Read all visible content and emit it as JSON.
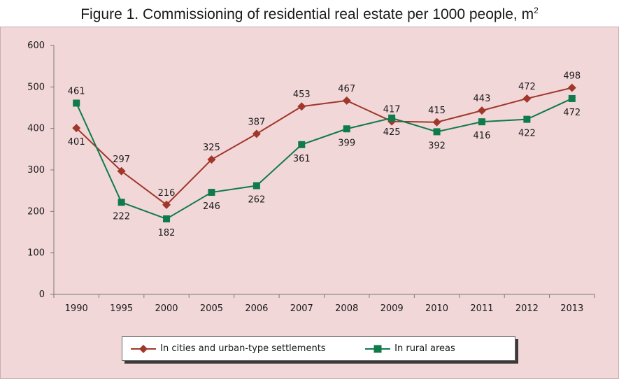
{
  "title": "Figure 1. Commissioning of residential real estate per 1000 people, m",
  "title_sup": "2",
  "chart_data": {
    "type": "line",
    "title": "Figure 1. Commissioning of residential real estate per 1000 people, m2",
    "categories": [
      "1990",
      "1995",
      "2000",
      "2005",
      "2006",
      "2007",
      "2008",
      "2009",
      "2010",
      "2011",
      "2012",
      "2013"
    ],
    "ylim": [
      0,
      600
    ],
    "yticks": [
      "0",
      "100",
      "200",
      "300",
      "400",
      "500",
      "600"
    ],
    "ytick_values": [
      0,
      100,
      200,
      300,
      400,
      500,
      600
    ],
    "series": [
      {
        "name": "In cities and urban-type settlements",
        "color": "#a0372a",
        "marker": "diamond",
        "values": [
          401,
          297,
          216,
          325,
          387,
          453,
          467,
          417,
          415,
          443,
          472,
          498
        ],
        "labels": [
          "401",
          "297",
          "216",
          "325",
          "387",
          "453",
          "467",
          "417",
          "415",
          "443",
          "472",
          "498"
        ],
        "label_pos": [
          "below",
          "above",
          "above",
          "above",
          "above",
          "above",
          "above",
          "above",
          "above",
          "above",
          "above",
          "above"
        ]
      },
      {
        "name": "In rural areas",
        "color": "#0f7a4a",
        "marker": "square",
        "values": [
          461,
          222,
          182,
          246,
          262,
          361,
          399,
          425,
          392,
          416,
          422,
          472
        ],
        "labels": [
          "461",
          "222",
          "182",
          "246",
          "262",
          "361",
          "399",
          "425",
          "392",
          "416",
          "422",
          "472"
        ],
        "label_pos": [
          "above",
          "below",
          "below",
          "below",
          "below",
          "below",
          "below",
          "below",
          "below",
          "below",
          "below",
          "below"
        ]
      }
    ],
    "legend_position": "bottom",
    "grid": false
  }
}
